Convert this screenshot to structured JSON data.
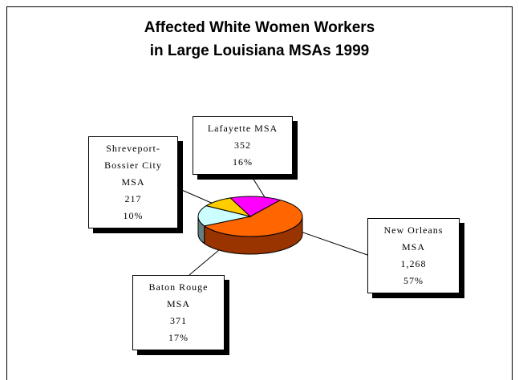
{
  "chart_data": {
    "type": "pie3d",
    "title": [
      "Affected White Women Workers",
      "in Large Louisiana MSAs 1999"
    ],
    "categories": [
      "New Orleans MSA",
      "Baton Rouge MSA",
      "Shreveport-Bossier City MSA",
      "Lafayette MSA"
    ],
    "values": [
      1268,
      371,
      217,
      352
    ],
    "value_labels": [
      "1,268",
      "371",
      "217",
      "352"
    ],
    "percents": [
      57,
      17,
      10,
      16
    ],
    "percent_labels": [
      "57%",
      "17%",
      "10%",
      "16%"
    ],
    "colors": [
      "#ff6600",
      "#ccffff",
      "#ffcc00",
      "#ff00ff"
    ],
    "side_colors": [
      "#993300",
      "#668080",
      "#997a00",
      "#990099"
    ]
  }
}
